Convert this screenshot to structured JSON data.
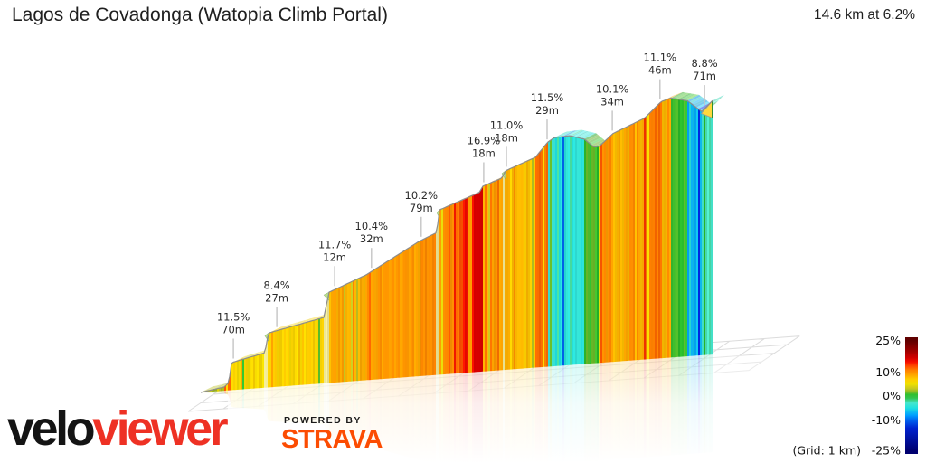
{
  "header": {
    "title": "Lagos de Covadonga (Watopia Climb Portal)",
    "stat": "14.6 km at 6.2%"
  },
  "logo": {
    "velo": "velo",
    "viewer": "viewer",
    "powered_by": "POWERED BY",
    "strava": "STRAVA"
  },
  "legend": {
    "ticks": [
      {
        "label": "25%",
        "grade": 25
      },
      {
        "label": "10%",
        "grade": 10
      },
      {
        "label": "0%",
        "grade": 0
      },
      {
        "label": "-10%",
        "grade": -10
      },
      {
        "label": "-25%",
        "grade": -25
      }
    ],
    "grid_note": "(Grid: 1 km)"
  },
  "chart_data": {
    "type": "area",
    "title": "Lagos de Covadonga (Watopia Climb Portal)",
    "total_distance_km": 14.6,
    "avg_gradient_pct": 6.2,
    "grid_spacing_km": 1,
    "legend_position": "bottom-right",
    "callouts": [
      {
        "km": 0.93,
        "gradient": "11.5%",
        "climb": "70m"
      },
      {
        "km": 2.17,
        "gradient": "8.4%",
        "climb": "27m"
      },
      {
        "km": 3.82,
        "gradient": "11.7%",
        "climb": "12m"
      },
      {
        "km": 4.87,
        "gradient": "10.4%",
        "climb": "32m"
      },
      {
        "km": 6.29,
        "gradient": "10.2%",
        "climb": "79m"
      },
      {
        "km": 8.07,
        "gradient": "16.9%",
        "climb": "18m"
      },
      {
        "km": 8.72,
        "gradient": "11.0%",
        "climb": "18m"
      },
      {
        "km": 9.88,
        "gradient": "11.5%",
        "climb": "29m"
      },
      {
        "km": 11.74,
        "gradient": "10.1%",
        "climb": "34m"
      },
      {
        "km": 13.1,
        "gradient": "11.1%",
        "climb": "46m"
      },
      {
        "km": 14.37,
        "gradient": "8.8%",
        "climb": "71m"
      }
    ],
    "profile": [
      [
        0,
        0
      ],
      [
        0.67,
        14
      ],
      [
        0.8,
        29
      ],
      [
        0.88,
        103
      ],
      [
        1.83,
        131
      ],
      [
        1.93,
        204
      ],
      [
        3.51,
        247
      ],
      [
        3.66,
        340
      ],
      [
        4.72,
        395
      ],
      [
        6.22,
        505
      ],
      [
        6.73,
        534
      ],
      [
        6.81,
        618
      ],
      [
        7.94,
        672
      ],
      [
        8.05,
        695
      ],
      [
        8.59,
        720
      ],
      [
        8.69,
        746
      ],
      [
        9.54,
        788
      ],
      [
        9.9,
        842
      ],
      [
        10.08,
        857
      ],
      [
        10.52,
        860
      ],
      [
        10.94,
        843
      ],
      [
        11.22,
        810
      ],
      [
        11.37,
        812
      ],
      [
        11.76,
        856
      ],
      [
        12.66,
        905
      ],
      [
        13.13,
        962
      ],
      [
        13.41,
        973
      ],
      [
        13.88,
        958
      ],
      [
        14.29,
        914
      ],
      [
        14.6,
        952
      ]
    ],
    "color_bands": [
      [
        0,
        0.67,
        2.5
      ],
      [
        0.67,
        0.88,
        12
      ],
      [
        0.88,
        1.83,
        6
      ],
      [
        1.93,
        3.51,
        6.5
      ],
      [
        3.66,
        4.72,
        8.5
      ],
      [
        4.72,
        6.22,
        9.5
      ],
      [
        6.22,
        6.73,
        10.5
      ],
      [
        6.81,
        7.2,
        10
      ],
      [
        7.2,
        7.5,
        12
      ],
      [
        7.5,
        7.8,
        15
      ],
      [
        7.8,
        7.94,
        17
      ],
      [
        7.94,
        8.05,
        16.9
      ],
      [
        8.05,
        8.59,
        9
      ],
      [
        8.69,
        9.54,
        7.5
      ],
      [
        9.54,
        9.9,
        11.5
      ],
      [
        9.9,
        10.08,
        2
      ],
      [
        10.08,
        10.94,
        -4.5
      ],
      [
        10.94,
        11.37,
        0.5
      ],
      [
        11.37,
        11.76,
        10.1
      ],
      [
        11.76,
        12.66,
        8
      ],
      [
        12.66,
        13.13,
        11.1
      ],
      [
        13.13,
        13.41,
        8
      ],
      [
        13.41,
        13.88,
        0.5
      ],
      [
        13.88,
        14.29,
        -7
      ],
      [
        14.29,
        14.6,
        -3
      ]
    ],
    "walls": [
      {
        "from": 1.83,
        "to": 1.93
      },
      {
        "from": 3.51,
        "to": 3.66
      },
      {
        "from": 6.73,
        "to": 6.81
      },
      {
        "from": 8.59,
        "to": 8.69
      }
    ],
    "colormap": [
      [
        -25,
        "#000070"
      ],
      [
        -12,
        "#0028E0"
      ],
      [
        -8,
        "#00A0FF"
      ],
      [
        -5,
        "#20E0E0"
      ],
      [
        -2.5,
        "#50E8C8"
      ],
      [
        -0.5,
        "#28B828"
      ],
      [
        0.5,
        "#30C030"
      ],
      [
        2,
        "#A8B820"
      ],
      [
        3.5,
        "#D6D020"
      ],
      [
        5,
        "#F0E000"
      ],
      [
        6.5,
        "#FFD700"
      ],
      [
        8,
        "#FFB800"
      ],
      [
        9.5,
        "#FF9800"
      ],
      [
        11,
        "#FF8000"
      ],
      [
        12.5,
        "#FF5A00"
      ],
      [
        14,
        "#FF2800"
      ],
      [
        15.5,
        "#F00000"
      ],
      [
        17,
        "#D00000"
      ],
      [
        20,
        "#A00000"
      ],
      [
        25,
        "#600000"
      ]
    ],
    "accent_colors": {
      "veloviewer_red": "#EE3124",
      "strava_orange": "#FC4C02"
    }
  }
}
